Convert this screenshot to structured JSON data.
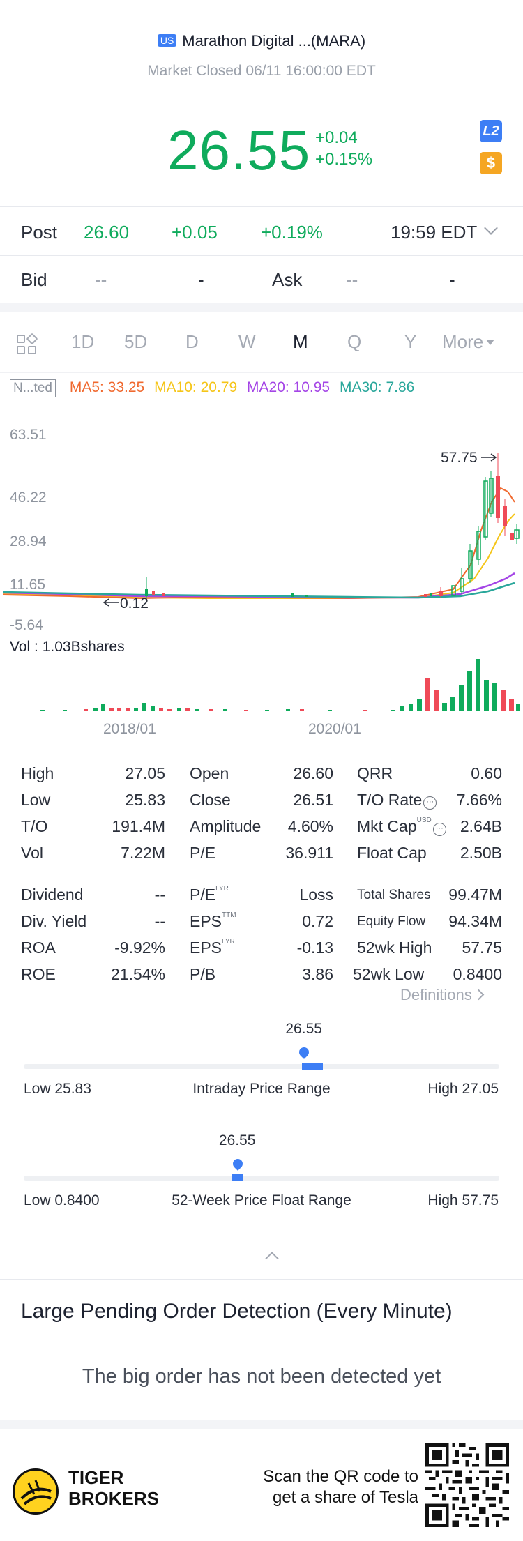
{
  "header": {
    "market_badge": "US",
    "title": "Marathon Digital ...(MARA)",
    "status": "Market Closed 06/11 16:00:00 EDT",
    "price": "26.55",
    "change": "+0.04",
    "change_pct": "+0.15%",
    "l2_label": "L2",
    "dollar_label": "$"
  },
  "post": {
    "label": "Post",
    "price": "26.60",
    "change": "+0.05",
    "change_pct": "+0.19%",
    "time": "19:59 EDT"
  },
  "bidask": {
    "bid_label": "Bid",
    "bid_price": "--",
    "bid_size": "-",
    "ask_label": "Ask",
    "ask_price": "--",
    "ask_size": "-"
  },
  "tabs": [
    "1D",
    "5D",
    "D",
    "W",
    "M",
    "Q",
    "Y",
    "More"
  ],
  "active_tab": "M",
  "ma": {
    "box": "N...ted",
    "ma5": "MA5: 33.25",
    "ma10": "MA10: 20.79",
    "ma20": "MA20: 10.95",
    "ma30": "MA30: 7.86",
    "colors": {
      "ma5": "#f0692f",
      "ma10": "#f5c518",
      "ma20": "#a445e6",
      "ma30": "#2aa79b"
    }
  },
  "chart_data": {
    "type": "candlestick",
    "y_ticks": [
      "63.51",
      "46.22",
      "28.94",
      "11.65",
      "-5.64"
    ],
    "ylim": [
      -5.64,
      63.51
    ],
    "x_ticks": [
      "2018/01",
      "2020/01"
    ],
    "max_label": "57.75",
    "min_label": "0.12",
    "volume_label": "Vol  : 1.03Bshares",
    "up_color": "#0fab5c",
    "down_color": "#ef4a57"
  },
  "stats": {
    "col1": [
      {
        "label": "High",
        "value": "27.05"
      },
      {
        "label": "Low",
        "value": "25.83"
      },
      {
        "label": "T/O",
        "value": "191.4M"
      },
      {
        "label": "Vol",
        "value": "7.22M"
      }
    ],
    "col2": [
      {
        "label": "Open",
        "value": "26.60"
      },
      {
        "label": "Close",
        "value": "26.51"
      },
      {
        "label": "Amplitude",
        "value": "4.60%"
      },
      {
        "label": "P/E",
        "value": "36.911"
      }
    ],
    "col3": [
      {
        "label": "QRR",
        "value": "0.60"
      },
      {
        "label": "T/O Rate",
        "value": "7.66%"
      },
      {
        "label": "Mkt Cap",
        "value": "2.64B",
        "sup": "USD"
      },
      {
        "label": "Float Cap",
        "value": "2.50B"
      }
    ],
    "col4": [
      {
        "label": "Dividend",
        "value": "--"
      },
      {
        "label": "Div. Yield",
        "value": "--"
      },
      {
        "label": "ROA",
        "value": "-9.92%"
      },
      {
        "label": "ROE",
        "value": "21.54%"
      }
    ],
    "col5": [
      {
        "label": "P/E",
        "sup": "LYR",
        "value": "Loss"
      },
      {
        "label": "EPS",
        "sup": "TTM",
        "value": "0.72"
      },
      {
        "label": "EPS",
        "sup": "LYR",
        "value": "-0.13"
      },
      {
        "label": "P/B",
        "value": "3.86"
      }
    ],
    "col6": [
      {
        "label": "Total Shares",
        "value": "99.47M"
      },
      {
        "label": "Equity Flow",
        "value": "94.34M"
      },
      {
        "label": "52wk High",
        "value": "57.75"
      },
      {
        "label": "52wk Low",
        "value": "0.8400"
      }
    ],
    "definitions": "Definitions"
  },
  "intraday": {
    "current": "26.55",
    "current_fraction": 0.59,
    "low": "Low 25.83",
    "label": "Intraday Price Range",
    "high": "High 27.05"
  },
  "week52": {
    "current": "26.55",
    "current_fraction": 0.45,
    "low": "Low 0.8400",
    "label": "52-Week Price Float Range",
    "high": "High 57.75"
  },
  "pending": {
    "title": "Large Pending Order Detection (Every Minute)",
    "message": "The big order has not been detected yet"
  },
  "footer": {
    "brand_line1": "TIGER",
    "brand_line2": "BROKERS",
    "promo_line1": "Scan the QR code to",
    "promo_line2": "get a share of Tesla"
  }
}
